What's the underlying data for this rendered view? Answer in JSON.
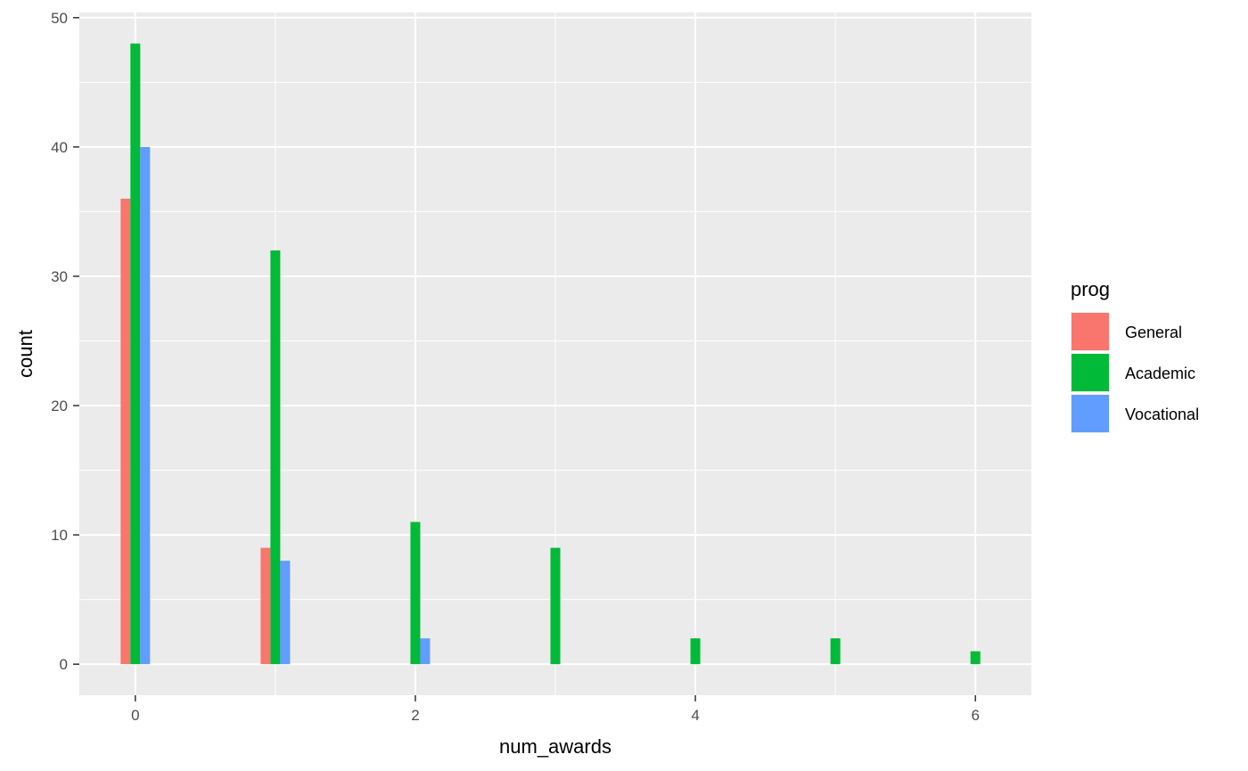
{
  "chart_data": {
    "type": "bar",
    "xlabel": "num_awards",
    "ylabel": "count",
    "xlim": [
      -0.4,
      6.4
    ],
    "ylim": [
      -2.4,
      50.4
    ],
    "x_ticks": [
      0,
      2,
      4,
      6
    ],
    "y_ticks": [
      0,
      10,
      20,
      30,
      40,
      50
    ],
    "grid": true,
    "legend": {
      "title": "prog",
      "placement": "right"
    },
    "series": [
      {
        "name": "General",
        "color": "#F8766D",
        "points": [
          {
            "x": 0,
            "y": 36
          },
          {
            "x": 1,
            "y": 9
          }
        ]
      },
      {
        "name": "Academic",
        "color": "#00BA38",
        "points": [
          {
            "x": 0,
            "y": 48
          },
          {
            "x": 1,
            "y": 32
          },
          {
            "x": 2,
            "y": 11
          },
          {
            "x": 3,
            "y": 9
          },
          {
            "x": 4,
            "y": 2
          },
          {
            "x": 5,
            "y": 2
          },
          {
            "x": 6,
            "y": 1
          }
        ]
      },
      {
        "name": "Vocational",
        "color": "#619CFF",
        "points": [
          {
            "x": 0,
            "y": 40
          },
          {
            "x": 1,
            "y": 8
          },
          {
            "x": 2,
            "y": 2
          }
        ]
      }
    ]
  }
}
